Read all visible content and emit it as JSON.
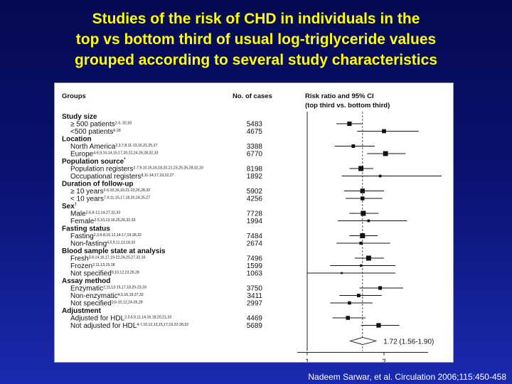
{
  "title_lines": [
    "Studies of the risk of CHD in individuals in the",
    "top vs bottom third of usual log-triglyceride values",
    "grouped according to several study characteristics"
  ],
  "citation": "Nadeem Sarwar, et al. Circulation 2006;115:450-458",
  "chart_data": {
    "type": "forest",
    "column_headers": {
      "groups": "Groups",
      "cases": "No. of cases",
      "ratio": "Risk ratio and 95% CI",
      "ratio_sub": "(top third vs. bottom third)"
    },
    "xlim": [
      0.5,
      3.0
    ],
    "xticks": [
      1,
      2
    ],
    "reference_line": 1,
    "pooled_line": 1.72,
    "rows": [
      {
        "kind": "header",
        "label": "Study size"
      },
      {
        "kind": "row",
        "label": "≥ 500 patients",
        "refs": "2-5, 32,33",
        "cases": "5483",
        "rr": 1.55,
        "lo": 1.38,
        "hi": 1.72
      },
      {
        "kind": "row",
        "label": "<500 patients",
        "refs": "6-28",
        "cases": "4675",
        "rr": 2.0,
        "lo": 1.65,
        "hi": 2.45
      },
      {
        "kind": "header",
        "label": "Location"
      },
      {
        "kind": "row",
        "label": "North America",
        "refs": "2,3,7,8,11-13,16,21,25,27",
        "cases": "3388",
        "rr": 1.6,
        "lo": 1.36,
        "hi": 1.88
      },
      {
        "kind": "row",
        "label": "Europe",
        "refs": "4-6,9,10,14,15,17,20,22,24,26,28,32,33",
        "cases": "6770",
        "rr": 2.02,
        "lo": 1.78,
        "hi": 2.28
      },
      {
        "kind": "header",
        "label": "Population source",
        "mark": "*"
      },
      {
        "kind": "row",
        "label": "Population registers",
        "refs": "2-7,9,10,15,16,18,20,21,23,25,26,28,32,33",
        "cases": "8198",
        "rr": 1.7,
        "lo": 1.55,
        "hi": 1.86
      },
      {
        "kind": "row",
        "label": "Occupational registers",
        "refs": "8,11-14,17,19,22,27",
        "cases": "1892",
        "rr": 1.95,
        "lo": 1.45,
        "hi": 2.75
      },
      {
        "kind": "header",
        "label": "Duration of follow-up"
      },
      {
        "kind": "row",
        "label": "≥ 10 years",
        "refs": "2-6,10,16,19,21-23,26,28,32",
        "cases": "5902",
        "rr": 1.72,
        "lo": 1.48,
        "hi": 2.0
      },
      {
        "kind": "row",
        "label": "< 10 years",
        "refs": "7-9,11-15,17,18,20,24,25,27",
        "cases": "4256",
        "rr": 1.72,
        "lo": 1.5,
        "hi": 1.98
      },
      {
        "kind": "header",
        "label": "Sex",
        "mark": "†"
      },
      {
        "kind": "row",
        "label": "Male",
        "refs": "2-6,8-12,14-27,32,33",
        "cases": "7728",
        "rr": 1.73,
        "lo": 1.55,
        "hi": 1.93
      },
      {
        "kind": "row",
        "label": "Female",
        "refs": "2-5,10,13,16,25,26,32,33",
        "cases": "1994",
        "rr": 1.8,
        "lo": 1.4,
        "hi": 2.3
      },
      {
        "kind": "header",
        "label": "Fasting status"
      },
      {
        "kind": "row",
        "label": "Fasting",
        "refs": "2,3,6-8,10,12,14-17,19-28,32",
        "cases": "7484",
        "rr": 1.72,
        "lo": 1.55,
        "hi": 1.92
      },
      {
        "kind": "row",
        "label": "Non-fasting",
        "refs": "4,5,9,11,13,18,33",
        "cases": "2674",
        "rr": 1.7,
        "lo": 1.38,
        "hi": 2.08
      },
      {
        "kind": "header",
        "label": "Blood sample state at analysis"
      },
      {
        "kind": "row",
        "label": "Fresh",
        "refs": "3-8,14,16,17,19-22,24,25,27,32,33",
        "cases": "7496",
        "rr": 1.8,
        "lo": 1.62,
        "hi": 2.0
      },
      {
        "kind": "row",
        "label": "Frozen",
        "refs": "2,11,13,15,18",
        "cases": "1599",
        "rr": 1.7,
        "lo": 1.3,
        "hi": 2.15
      },
      {
        "kind": "row",
        "label": "Not specified",
        "refs": "9,10,12,23,26,28",
        "cases": "1063",
        "rr": 1.45,
        "lo": 1.0,
        "hi": 2.15
      },
      {
        "kind": "header",
        "label": "Assay method"
      },
      {
        "kind": "row",
        "label": "Enzymatic",
        "refs": "2,11,13-15,17,18,20-23,33",
        "cases": "3750",
        "rr": 1.95,
        "lo": 1.68,
        "hi": 2.25
      },
      {
        "kind": "row",
        "label": "Non-enzymatic",
        "refs": "4,5,16,19,27,32",
        "cases": "3411",
        "rr": 1.67,
        "lo": 1.42,
        "hi": 1.97
      },
      {
        "kind": "row",
        "label": "Not specified",
        "refs": "3,6-10,12,24-26,28",
        "cases": "2997",
        "rr": 1.55,
        "lo": 1.3,
        "hi": 1.85
      },
      {
        "kind": "header",
        "label": "Adjustment"
      },
      {
        "kind": "row",
        "label": "Adjusted for HDL",
        "refs": "2,3,5,9,11,14,16,18,20,21,33",
        "cases": "4469",
        "rr": 1.53,
        "lo": 1.33,
        "hi": 1.76
      },
      {
        "kind": "row",
        "label": "Not adjusted for HDL",
        "refs": "4-7,10,12,13,15,17,19,22-28,32",
        "cases": "5689",
        "rr": 1.93,
        "lo": 1.7,
        "hi": 2.2
      }
    ],
    "pooled": {
      "rr": 1.72,
      "lo": 1.56,
      "hi": 1.9,
      "label": "1.72 (1.56-1.90)"
    }
  }
}
